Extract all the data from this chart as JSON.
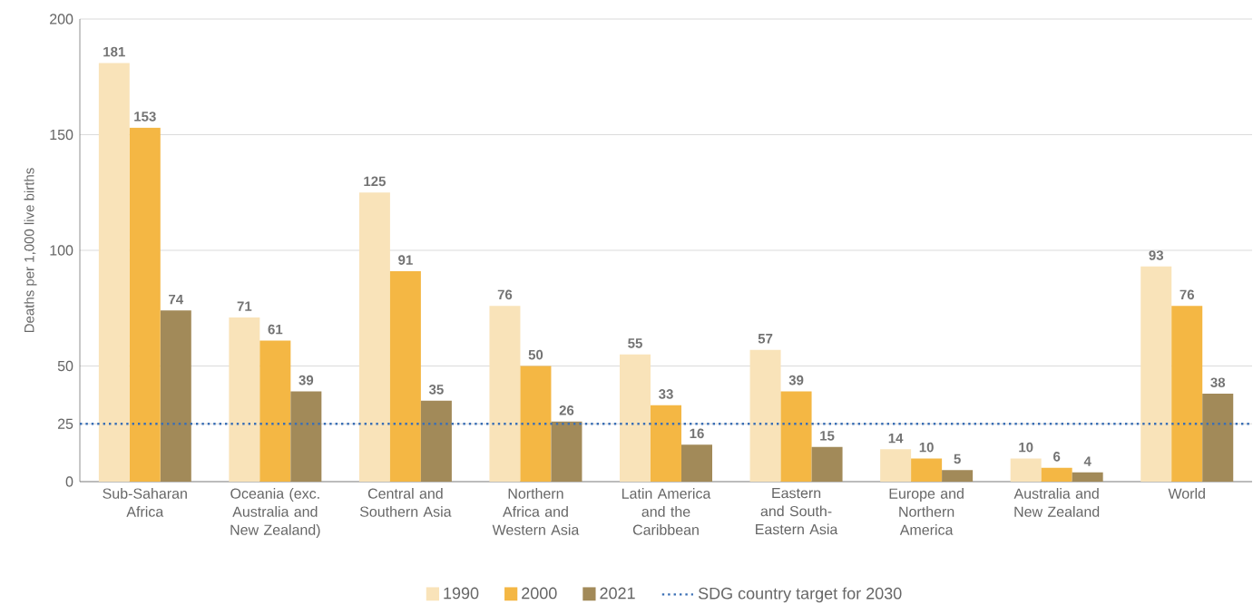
{
  "chart_data": {
    "type": "bar",
    "ylabel": "Deaths per 1,000 live births",
    "categories": [
      "Sub-Saharan Africa",
      "Oceania (exc. Australia and New Zealand)",
      "Central and Southern Asia",
      "Northern Africa and Western Asia",
      "Latin America and the Caribbean",
      "Eastern and South-Eastern Asia",
      "Europe and Northern America",
      "Australia and New Zealand",
      "World"
    ],
    "series": [
      {
        "name": "1990",
        "color": "#f9e3b9",
        "values": [
          181,
          71,
          125,
          76,
          55,
          57,
          14,
          10,
          93
        ]
      },
      {
        "name": "2000",
        "color": "#f4b744",
        "values": [
          153,
          61,
          91,
          50,
          33,
          39,
          10,
          6,
          76
        ]
      },
      {
        "name": "2021",
        "color": "#a28a59",
        "values": [
          74,
          39,
          35,
          26,
          16,
          15,
          5,
          4,
          38
        ]
      }
    ],
    "ylim": [
      0,
      200
    ],
    "yticks": [
      0,
      25,
      50,
      100,
      150,
      200
    ],
    "ref_lines": [
      {
        "axis": "y",
        "value": 25,
        "label": "SDG country target for 2030",
        "color": "#3a6fb5",
        "line_style": "dotted"
      }
    ],
    "data_labels": true,
    "grid": "y",
    "legend": "bottom"
  }
}
